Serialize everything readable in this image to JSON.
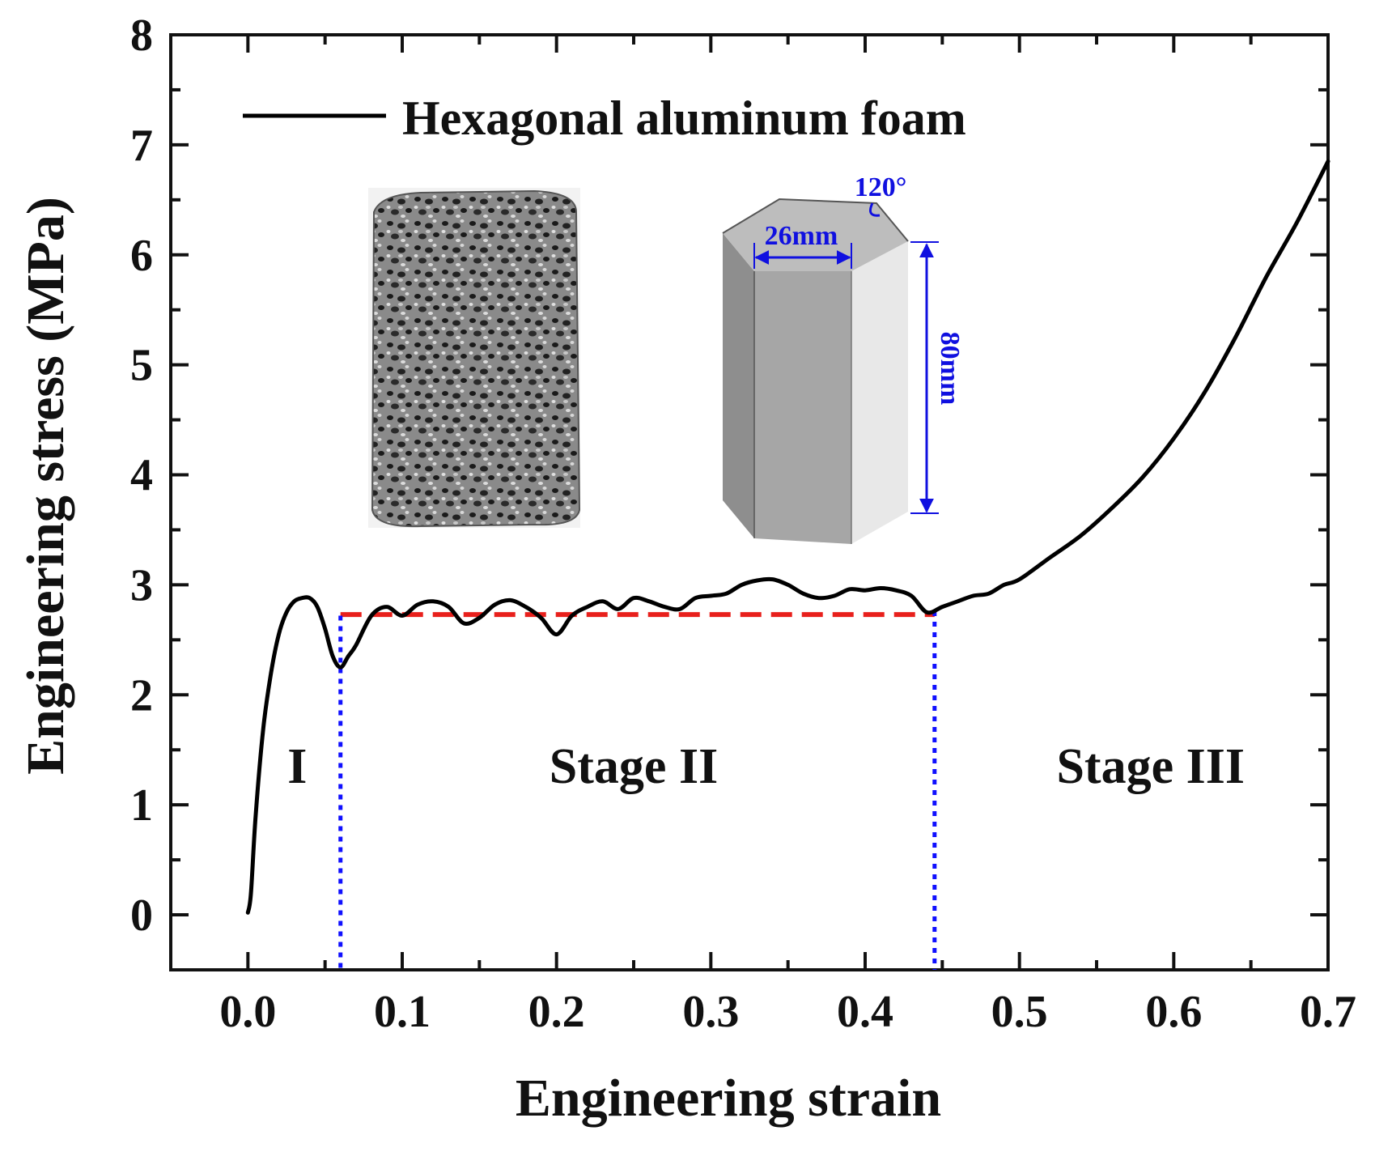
{
  "chart_data": {
    "type": "line",
    "xlabel": "Engineering strain",
    "ylabel": "Engineering stress (MPa)",
    "xlim": [
      -0.05,
      0.7
    ],
    "ylim": [
      -0.5,
      8
    ],
    "xticks": [
      0.0,
      0.1,
      0.2,
      0.3,
      0.4,
      0.5,
      0.6,
      0.7
    ],
    "xtick_labels": [
      "0.0",
      "0.1",
      "0.2",
      "0.3",
      "0.4",
      "0.5",
      "0.6",
      "0.7"
    ],
    "yticks": [
      0,
      1,
      2,
      3,
      4,
      5,
      6,
      7,
      8
    ],
    "ytick_labels": [
      "0",
      "1",
      "2",
      "3",
      "4",
      "5",
      "6",
      "7",
      "8"
    ],
    "legend_position": "top-left",
    "grid": false,
    "series": [
      {
        "name": "Hexagonal aluminum foam",
        "color": "#000000",
        "x": [
          0.0,
          0.002,
          0.005,
          0.01,
          0.015,
          0.02,
          0.025,
          0.03,
          0.035,
          0.04,
          0.045,
          0.05,
          0.055,
          0.06,
          0.065,
          0.07,
          0.08,
          0.09,
          0.1,
          0.11,
          0.12,
          0.13,
          0.14,
          0.15,
          0.16,
          0.17,
          0.18,
          0.19,
          0.2,
          0.21,
          0.22,
          0.23,
          0.24,
          0.25,
          0.26,
          0.27,
          0.28,
          0.29,
          0.3,
          0.31,
          0.32,
          0.33,
          0.34,
          0.35,
          0.36,
          0.37,
          0.38,
          0.39,
          0.4,
          0.41,
          0.42,
          0.43,
          0.44,
          0.45,
          0.46,
          0.47,
          0.48,
          0.49,
          0.5,
          0.52,
          0.54,
          0.56,
          0.58,
          0.6,
          0.62,
          0.64,
          0.66,
          0.68,
          0.7
        ],
        "y": [
          0.02,
          0.2,
          0.9,
          1.7,
          2.2,
          2.55,
          2.75,
          2.85,
          2.88,
          2.88,
          2.8,
          2.6,
          2.35,
          2.25,
          2.35,
          2.45,
          2.72,
          2.8,
          2.72,
          2.82,
          2.85,
          2.8,
          2.65,
          2.7,
          2.82,
          2.86,
          2.8,
          2.7,
          2.55,
          2.72,
          2.8,
          2.85,
          2.78,
          2.88,
          2.85,
          2.8,
          2.78,
          2.88,
          2.9,
          2.92,
          3.0,
          3.04,
          3.05,
          3.0,
          2.92,
          2.88,
          2.9,
          2.96,
          2.95,
          2.97,
          2.95,
          2.9,
          2.75,
          2.8,
          2.85,
          2.9,
          2.92,
          3.0,
          3.05,
          3.25,
          3.45,
          3.7,
          3.98,
          4.33,
          4.75,
          5.25,
          5.8,
          6.3,
          6.85
        ]
      }
    ],
    "plateau_line": {
      "y": 2.73,
      "x_start": 0.06,
      "x_end": 0.445,
      "color": "#e8201c",
      "style": "dashed"
    },
    "stage_boundaries": [
      {
        "x": 0.06,
        "color": "#1010ff",
        "style": "dotted"
      },
      {
        "x": 0.445,
        "color": "#1010ff",
        "style": "dotted"
      }
    ],
    "stage_labels": [
      {
        "text": "I",
        "x": 0.032,
        "y": 1.2
      },
      {
        "text": "Stage II",
        "x": 0.25,
        "y": 1.2
      },
      {
        "text": "Stage III",
        "x": 0.585,
        "y": 1.2
      }
    ]
  },
  "inset": {
    "dim_width": "26mm",
    "dim_height": "80mm",
    "dim_angle": "120°",
    "dim_color": "#1010e0"
  }
}
